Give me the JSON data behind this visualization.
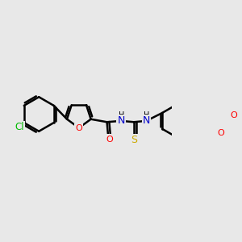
{
  "bg_color": "#e8e8e8",
  "bond_color": "#000000",
  "bond_width": 1.8,
  "atom_colors": {
    "O": "#ff0000",
    "N": "#0000cd",
    "Cl": "#00bb00",
    "S": "#ccaa00",
    "C": "#000000",
    "H": "#000000"
  },
  "figsize": [
    3.0,
    3.0
  ],
  "dpi": 100,
  "xlim": [
    0,
    300
  ],
  "ylim": [
    0,
    300
  ]
}
